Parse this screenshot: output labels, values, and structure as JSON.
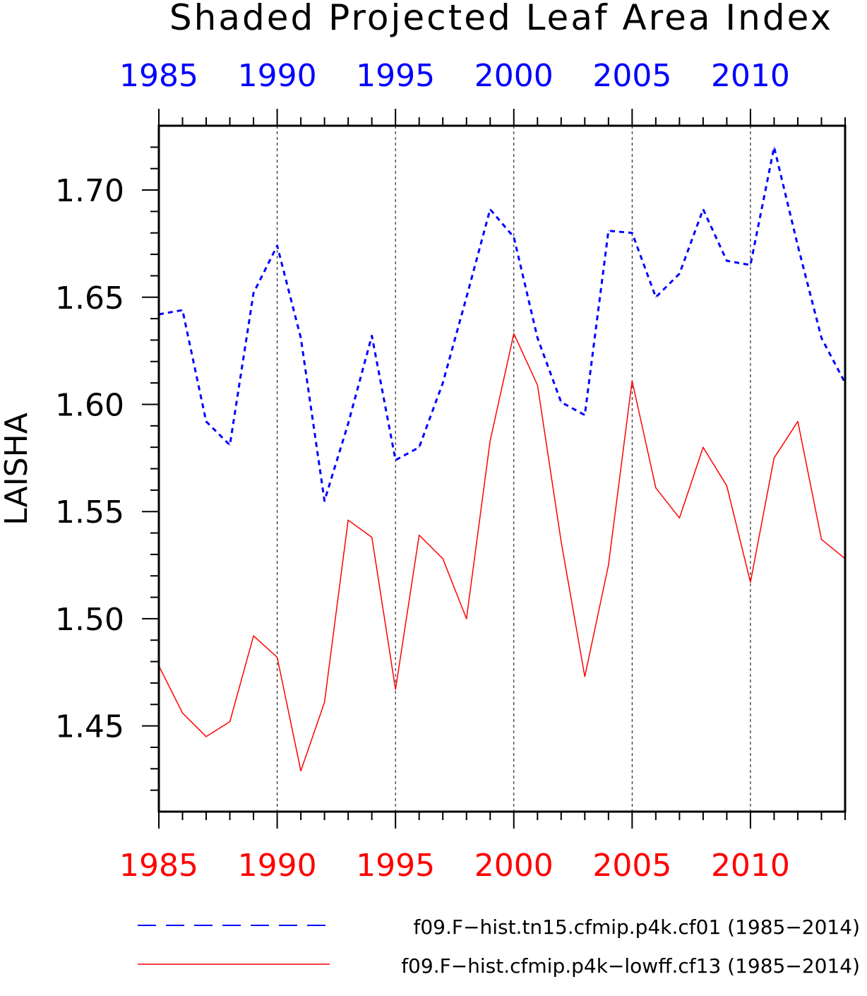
{
  "chart_data": {
    "type": "line",
    "title": "Shaded Projected Leaf Area Index",
    "ylabel": "LAISHA",
    "xlim": [
      1985,
      2014
    ],
    "ylim": [
      1.41,
      1.73
    ],
    "x": [
      1985,
      1986,
      1987,
      1988,
      1989,
      1990,
      1991,
      1992,
      1993,
      1994,
      1995,
      1996,
      1997,
      1998,
      1999,
      2000,
      2001,
      2002,
      2003,
      2004,
      2005,
      2006,
      2007,
      2008,
      2009,
      2010,
      2011,
      2012,
      2013,
      2014
    ],
    "xticks_major": [
      1985,
      1990,
      1995,
      2000,
      2005,
      2010
    ],
    "xticks_major_labels": [
      "1985",
      "1990",
      "1995",
      "2000",
      "2005",
      "2010"
    ],
    "yticks_major": [
      1.45,
      1.5,
      1.55,
      1.6,
      1.65,
      1.7
    ],
    "yticks_major_labels": [
      "1.45",
      "1.50",
      "1.55",
      "1.60",
      "1.65",
      "1.70"
    ],
    "grid": "vertical dashed at major x ticks",
    "top_axis_color": "#0000ff",
    "bottom_axis_color": "#ff0000",
    "legend_position": "bottom",
    "series": [
      {
        "name": "f09.F−hist.tn15.cfmip.p4k.cf01 (1985−2014)",
        "color": "#0000ff",
        "style": "dashed",
        "values": [
          1.642,
          1.644,
          1.592,
          1.581,
          1.652,
          1.674,
          1.631,
          1.555,
          1.591,
          1.632,
          1.574,
          1.58,
          1.61,
          1.65,
          1.691,
          1.678,
          1.631,
          1.601,
          1.595,
          1.681,
          1.68,
          1.65,
          1.661,
          1.691,
          1.667,
          1.665,
          1.72,
          1.674,
          1.631,
          1.61
        ]
      },
      {
        "name": "f09.F−hist.cfmip.p4k−lowff.cf13 (1985−2014)",
        "color": "#ff0000",
        "style": "solid",
        "values": [
          1.478,
          1.456,
          1.445,
          1.452,
          1.492,
          1.482,
          1.429,
          1.461,
          1.546,
          1.538,
          1.467,
          1.539,
          1.528,
          1.5,
          1.583,
          1.633,
          1.609,
          1.536,
          1.473,
          1.525,
          1.611,
          1.561,
          1.547,
          1.58,
          1.562,
          1.517,
          1.575,
          1.592,
          1.537,
          1.528
        ]
      }
    ]
  }
}
